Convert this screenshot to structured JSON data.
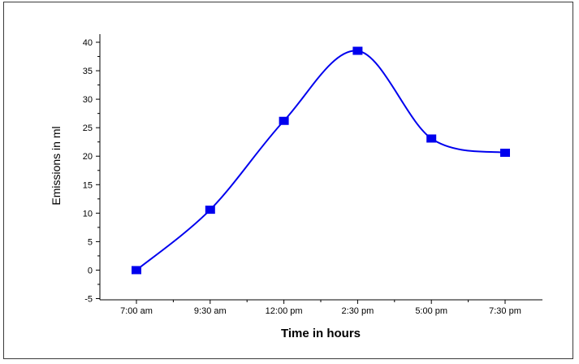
{
  "chart_data": {
    "type": "line",
    "title": "",
    "xlabel": "Time in hours",
    "ylabel": "Emissions in ml",
    "categories": [
      "7:00 am",
      "9:30 am",
      "12:00 pm",
      "2:30 pm",
      "5:00 pm",
      "7:30 pm"
    ],
    "series": [
      {
        "values": [
          0,
          10.6,
          26.2,
          38.5,
          23.1,
          20.6
        ]
      }
    ],
    "ylim": [
      -5,
      40
    ],
    "yticks": [
      -5,
      0,
      5,
      10,
      15,
      20,
      25,
      30,
      35,
      40
    ],
    "grid": false,
    "legend": "none",
    "smooth": true,
    "colors": {
      "series": "#0000ee",
      "axis": "#000000",
      "frame": "#3a3a3a"
    }
  }
}
